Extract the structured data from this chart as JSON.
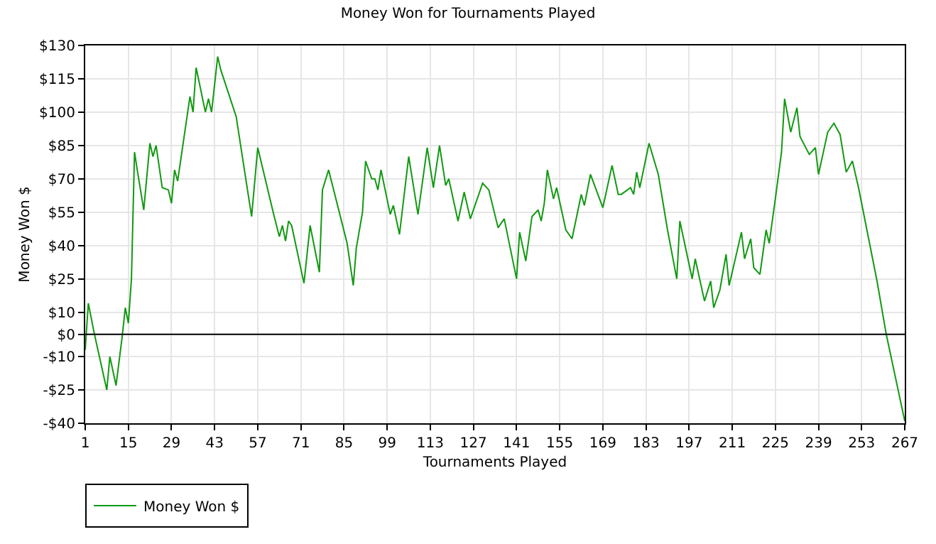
{
  "chart_data": {
    "type": "line",
    "title": "Money Won for Tournaments Played",
    "xlabel": "Tournaments Played",
    "ylabel": "Money Won $",
    "series": [
      {
        "name": "Money Won $",
        "color": "#119911",
        "x": [
          1,
          2,
          4,
          8,
          9,
          11,
          13,
          14,
          15,
          16,
          17,
          18,
          20,
          22,
          23,
          24,
          26,
          28,
          29,
          30,
          31,
          33,
          35,
          36,
          37,
          40,
          41,
          42,
          44,
          45,
          50,
          55,
          57,
          62,
          64,
          65,
          66,
          67,
          68,
          72,
          74,
          77,
          78,
          80,
          86,
          88,
          89,
          91,
          92,
          94,
          95,
          96,
          97,
          100,
          101,
          103,
          106,
          109,
          112,
          114,
          116,
          118,
          119,
          122,
          124,
          126,
          129,
          130,
          132,
          135,
          137,
          141,
          142,
          144,
          146,
          148,
          149,
          150,
          151,
          153,
          154,
          157,
          159,
          162,
          163,
          165,
          169,
          172,
          174,
          175,
          178,
          179,
          180,
          181,
          184,
          187,
          190,
          193,
          194,
          198,
          199,
          202,
          204,
          205,
          207,
          209,
          210,
          214,
          215,
          217,
          218,
          220,
          222,
          223,
          225,
          227,
          228,
          230,
          232,
          233,
          236,
          238,
          239,
          242,
          244,
          246,
          248,
          250,
          252,
          258,
          261,
          267
        ],
        "values": [
          -7,
          14,
          0,
          -25,
          -10,
          -23,
          -1,
          12,
          5,
          25,
          82,
          73,
          56,
          86,
          80,
          85,
          66,
          65,
          59,
          74,
          69,
          88,
          107,
          100,
          120,
          100,
          106,
          100,
          125,
          119,
          98,
          53,
          84,
          55,
          44,
          49,
          42,
          51,
          49,
          23,
          49,
          28,
          65,
          74,
          41,
          22,
          39,
          55,
          78,
          70,
          70,
          65,
          74,
          54,
          58,
          45,
          80,
          54,
          84,
          66,
          85,
          67,
          70,
          51,
          64,
          52,
          64,
          68,
          65,
          48,
          52,
          25,
          46,
          33,
          53,
          56,
          51,
          59,
          74,
          61,
          66,
          47,
          43,
          63,
          58,
          72,
          57,
          76,
          63,
          63,
          66,
          63,
          73,
          66,
          86,
          72,
          47,
          25,
          51,
          25,
          34,
          15,
          24,
          12,
          20,
          36,
          22,
          46,
          34,
          43,
          30,
          27,
          47,
          41,
          61,
          82,
          106,
          91,
          102,
          89,
          81,
          84,
          72,
          91,
          95,
          90,
          73,
          78,
          66,
          24,
          0,
          -39
        ]
      }
    ],
    "xlim": [
      1,
      267
    ],
    "xticks": [
      1,
      15,
      29,
      43,
      57,
      71,
      85,
      99,
      113,
      127,
      141,
      155,
      169,
      183,
      197,
      211,
      225,
      239,
      253,
      267
    ],
    "ylim": [
      -40,
      130
    ],
    "yticks": [
      {
        "value": -40,
        "label": "-$40"
      },
      {
        "value": -25,
        "label": "-$25"
      },
      {
        "value": -10,
        "label": "-$10"
      },
      {
        "value": 0,
        "label": "$0"
      },
      {
        "value": 10,
        "label": "$10"
      },
      {
        "value": 25,
        "label": "$25"
      },
      {
        "value": 40,
        "label": "$40"
      },
      {
        "value": 55,
        "label": "$55"
      },
      {
        "value": 70,
        "label": "$70"
      },
      {
        "value": 85,
        "label": "$85"
      },
      {
        "value": 100,
        "label": "$100"
      },
      {
        "value": 115,
        "label": "$115"
      },
      {
        "value": 130,
        "label": "$130"
      }
    ],
    "ref_lines": [
      {
        "axis": "y",
        "value": 0,
        "color": "#000000"
      }
    ],
    "grid": true,
    "legend": "bottom left",
    "marker": "none",
    "line_style": "solid"
  }
}
